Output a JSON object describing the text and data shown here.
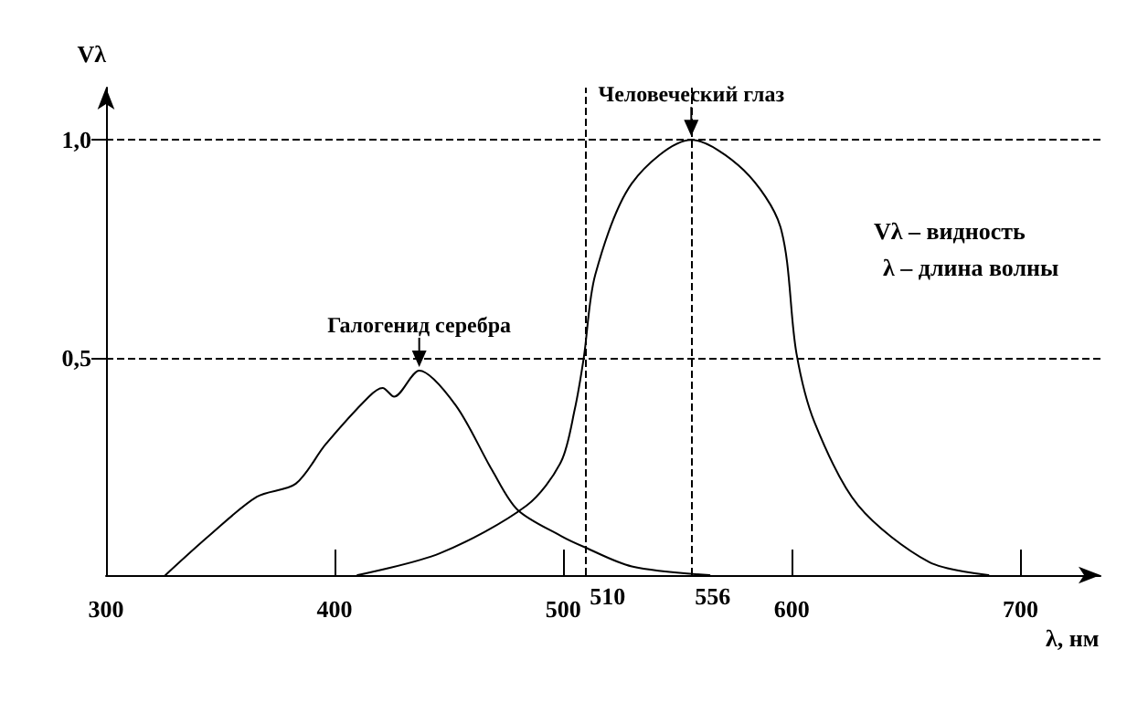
{
  "chart_data": {
    "type": "line",
    "xlabel": "λ, нм",
    "ylabel": "Vλ",
    "xlim": [
      300,
      735
    ],
    "xticks": [
      300,
      400,
      500,
      600,
      700
    ],
    "ylim": [
      0,
      1.12
    ],
    "yticks": [
      {
        "value": 0.5,
        "label": "0,5"
      },
      {
        "value": 1.0,
        "label": "1,0"
      }
    ],
    "grid": false,
    "marker": "none",
    "series": [
      {
        "color": "#000000",
        "x": [
          326,
          345,
          366,
          383,
          396,
          415,
          421,
          426,
          437,
          453,
          469,
          480,
          499,
          509,
          530,
          564
        ],
        "values": [
          0,
          0.09,
          0.18,
          0.21,
          0.3,
          0.41,
          0.43,
          0.41,
          0.47,
          0.39,
          0.24,
          0.15,
          0.09,
          0.065,
          0.02,
          0
        ]
      },
      {
        "color": "#000000",
        "x": [
          410,
          446,
          484,
          499,
          505,
          509,
          514,
          530,
          556,
          579,
          595,
          602,
          610,
          629,
          660,
          686
        ],
        "values": [
          0,
          0.05,
          0.16,
          0.26,
          0.38,
          0.5,
          0.69,
          0.9,
          1.0,
          0.93,
          0.8,
          0.51,
          0.35,
          0.16,
          0.03,
          0
        ]
      }
    ],
    "ref_lines": [
      {
        "axis": "y",
        "value": 1.0,
        "line_style": "dashed"
      },
      {
        "axis": "y",
        "value": 0.5,
        "line_style": "dashed"
      },
      {
        "axis": "x",
        "value": 510,
        "label": "510",
        "line_style": "dashed"
      },
      {
        "axis": "x",
        "value": 556,
        "label": "556",
        "line_style": "dashed"
      }
    ],
    "annotations": [
      {
        "text": "Галогенид серебра",
        "x": 437,
        "y": 0.47
      },
      {
        "text": "Человеческий глаз",
        "x": 556,
        "y": 1.0
      },
      "Vλ – видность",
      "λ – длина волны"
    ]
  }
}
